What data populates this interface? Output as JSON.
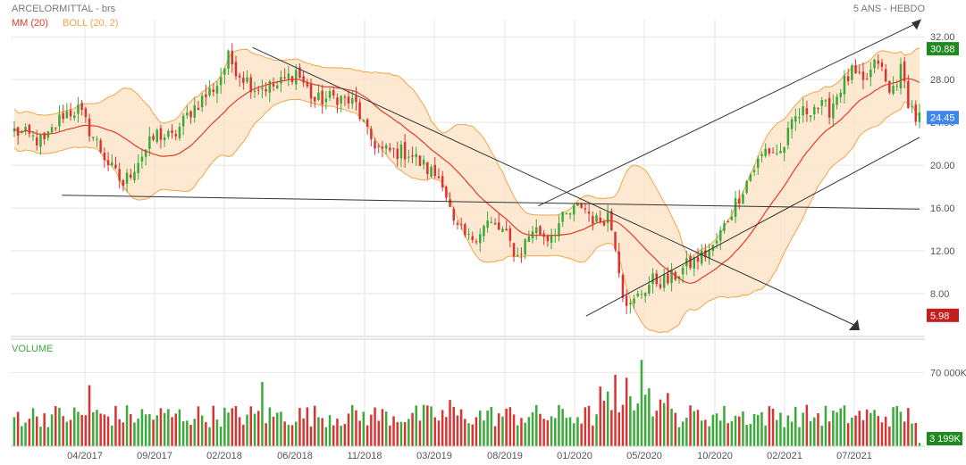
{
  "header": {
    "title": "ARCELORMITTAL - brs",
    "period": "5 ANS - HEBDO",
    "legend_ma": "MM (20)",
    "legend_boll": "BOLL (20, 2)",
    "volume_label": "VOLUME"
  },
  "colors": {
    "up": "#3aaa3a",
    "down": "#d83434",
    "ma": "#e23a2a",
    "boll_line": "#f0a548",
    "boll_fill": "#fde3c6",
    "grid": "#e6e6e6",
    "trendline": "#333333",
    "badge_high": "#1f8a1f",
    "badge_last": "#3d86f0",
    "badge_low": "#c41e1e"
  },
  "badges": {
    "high": "30.88",
    "last": "24.45",
    "low": "5.98",
    "volume_last": "3 199K"
  },
  "chart_data": {
    "type": "candlestick",
    "title": "ARCELORMITTAL - brs",
    "timeframe": "5 ANS - HEBDO",
    "y_ticks": [
      "32.00",
      "28.00",
      "24.00",
      "20.00",
      "16.00",
      "12.00",
      "8.00"
    ],
    "y_range": [
      4.0,
      33.6
    ],
    "volume_ticks": [
      "70 000K"
    ],
    "volume_range": [
      0,
      100000
    ],
    "x_ticks": [
      "04/2017",
      "09/2017",
      "02/2018",
      "06/2018",
      "11/2018",
      "03/2019",
      "08/2019",
      "01/2020",
      "05/2020",
      "10/2020",
      "02/2021",
      "07/2021"
    ],
    "anchors": [
      [
        0,
        23.2
      ],
      [
        8,
        22.1
      ],
      [
        13,
        24.8
      ],
      [
        17,
        25.2
      ],
      [
        21,
        22.7
      ],
      [
        26,
        19.6
      ],
      [
        29,
        18.2
      ],
      [
        33,
        20.5
      ],
      [
        38,
        22.9
      ],
      [
        42,
        22.5
      ],
      [
        47,
        25.1
      ],
      [
        54,
        27.6
      ],
      [
        57,
        30.0
      ],
      [
        60,
        28.6
      ],
      [
        64,
        27.3
      ],
      [
        70,
        27.4
      ],
      [
        75,
        28.8
      ],
      [
        80,
        26.0
      ],
      [
        86,
        26.4
      ],
      [
        91,
        25.6
      ],
      [
        94,
        22.8
      ],
      [
        98,
        21.3
      ],
      [
        105,
        21.2
      ],
      [
        110,
        19.6
      ],
      [
        114,
        18.7
      ],
      [
        117,
        14.3
      ],
      [
        121,
        13.0
      ],
      [
        126,
        14.6
      ],
      [
        130,
        13.8
      ],
      [
        134,
        11.5
      ],
      [
        138,
        14.1
      ],
      [
        142,
        13.3
      ],
      [
        146,
        14.9
      ],
      [
        151,
        16.3
      ],
      [
        155,
        14.7
      ],
      [
        158,
        15.4
      ],
      [
        160,
        12.8
      ],
      [
        162,
        8.2
      ],
      [
        164,
        6.7
      ],
      [
        167,
        8.2
      ],
      [
        170,
        9.2
      ],
      [
        174,
        9.2
      ],
      [
        178,
        10.3
      ],
      [
        182,
        11.3
      ],
      [
        186,
        12.2
      ],
      [
        189,
        14.3
      ],
      [
        192,
        16.5
      ],
      [
        196,
        19.2
      ],
      [
        200,
        21.4
      ],
      [
        204,
        21.2
      ],
      [
        208,
        24.4
      ],
      [
        213,
        25.6
      ],
      [
        217,
        25.2
      ],
      [
        220,
        27.3
      ],
      [
        223,
        28.6
      ],
      [
        226,
        27.5
      ],
      [
        230,
        29.8
      ],
      [
        233,
        26.6
      ],
      [
        236,
        28.8
      ],
      [
        238,
        26.1
      ],
      [
        240,
        24.4
      ]
    ],
    "volume_spikes": [
      [
        20,
        58000
      ],
      [
        66,
        61000
      ],
      [
        116,
        44000
      ],
      [
        160,
        68000
      ],
      [
        163,
        65000
      ],
      [
        167,
        82000
      ],
      [
        169,
        55000
      ]
    ],
    "trendlines": [
      {
        "from": [
          "2017-06",
          17.2
        ],
        "to": [
          "2021-12",
          15.9
        ]
      },
      {
        "from": [
          "2018-06",
          31.0
        ],
        "to": [
          "2021-08",
          5.0
        ]
      },
      {
        "from": [
          "2020-03",
          5.9
        ],
        "to": [
          "2021-12",
          22.6
        ]
      },
      {
        "from": [
          "2019-12",
          16.2
        ],
        "to": [
          "2021-12",
          33.4
        ]
      }
    ]
  }
}
